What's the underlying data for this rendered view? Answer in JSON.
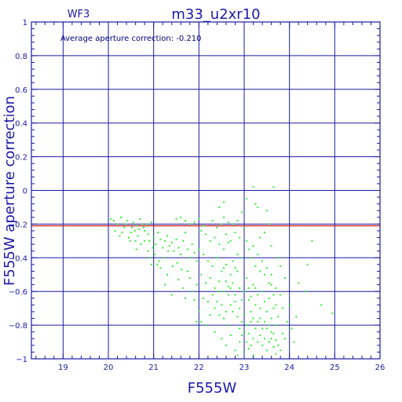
{
  "chart_data": {
    "type": "scatter",
    "title": "m33_u2xr10",
    "chip_label": "WF3",
    "annotation": "Average aperture correction: -0.210",
    "xlabel": "F555W",
    "ylabel": "F555W aperture correction",
    "xlim": [
      18.3,
      26
    ],
    "ylim": [
      -1,
      1
    ],
    "x_ticks": [
      "19",
      "20",
      "21",
      "22",
      "23",
      "24",
      "25",
      "26"
    ],
    "y_ticks": [
      "1",
      "0.8",
      "0.6",
      "0.4",
      "0.2",
      "0",
      "−0.2",
      "−0.4",
      "−0.6",
      "−0.8",
      "−1"
    ],
    "grid": true,
    "average_line": -0.21,
    "colors": {
      "axes": "#1a1aa6",
      "grid": "#1a1aa6",
      "points": "#33ee33",
      "average_line": "#cc2222"
    },
    "points": [
      [
        20.05,
        -0.17
      ],
      [
        20.12,
        -0.18
      ],
      [
        20.2,
        -0.2
      ],
      [
        20.28,
        -0.16
      ],
      [
        20.35,
        -0.22
      ],
      [
        20.42,
        -0.18
      ],
      [
        20.5,
        -0.25
      ],
      [
        20.55,
        -0.19
      ],
      [
        20.62,
        -0.21
      ],
      [
        20.68,
        -0.23
      ],
      [
        20.75,
        -0.2
      ],
      [
        20.8,
        -0.24
      ],
      [
        20.88,
        -0.26
      ],
      [
        20.95,
        -0.19
      ],
      [
        20.15,
        -0.24
      ],
      [
        20.25,
        -0.27
      ],
      [
        20.45,
        -0.28
      ],
      [
        20.6,
        -0.3
      ],
      [
        20.7,
        -0.17
      ],
      [
        20.78,
        -0.22
      ],
      [
        20.85,
        -0.2
      ],
      [
        20.9,
        -0.3
      ],
      [
        21.0,
        -0.28
      ],
      [
        21.05,
        -0.32
      ],
      [
        21.1,
        -0.25
      ],
      [
        21.15,
        -0.29
      ],
      [
        21.2,
        -0.34
      ],
      [
        21.25,
        -0.3
      ],
      [
        21.3,
        -0.27
      ],
      [
        21.35,
        -0.33
      ],
      [
        21.4,
        -0.31
      ],
      [
        21.45,
        -0.36
      ],
      [
        21.5,
        -0.29
      ],
      [
        21.55,
        -0.34
      ],
      [
        21.6,
        -0.38
      ],
      [
        21.65,
        -0.3
      ],
      [
        21.7,
        -0.25
      ],
      [
        21.75,
        -0.35
      ],
      [
        21.8,
        -0.4
      ],
      [
        21.85,
        -0.32
      ],
      [
        21.9,
        -0.37
      ],
      [
        21.95,
        -0.42
      ],
      [
        21.02,
        -0.38
      ],
      [
        21.12,
        -0.42
      ],
      [
        21.22,
        -0.4
      ],
      [
        21.32,
        -0.36
      ],
      [
        21.42,
        -0.45
      ],
      [
        21.52,
        -0.43
      ],
      [
        21.62,
        -0.47
      ],
      [
        21.5,
        -0.17
      ],
      [
        21.6,
        -0.16
      ],
      [
        21.7,
        -0.18
      ],
      [
        21.8,
        -0.2
      ],
      [
        21.9,
        -0.19
      ],
      [
        22.0,
        -0.17
      ],
      [
        22.1,
        -0.21
      ],
      [
        22.05,
        -0.24
      ],
      [
        22.15,
        -0.26
      ],
      [
        22.25,
        -0.3
      ],
      [
        22.35,
        -0.28
      ],
      [
        22.45,
        -0.32
      ],
      [
        22.55,
        -0.35
      ],
      [
        22.65,
        -0.31
      ],
      [
        22.0,
        -0.35
      ],
      [
        22.1,
        -0.38
      ],
      [
        22.2,
        -0.42
      ],
      [
        22.3,
        -0.45
      ],
      [
        22.4,
        -0.4
      ],
      [
        22.5,
        -0.48
      ],
      [
        22.6,
        -0.44
      ],
      [
        22.05,
        -0.5
      ],
      [
        22.15,
        -0.55
      ],
      [
        22.25,
        -0.52
      ],
      [
        22.35,
        -0.58
      ],
      [
        22.45,
        -0.54
      ],
      [
        22.55,
        -0.6
      ],
      [
        22.65,
        -0.57
      ],
      [
        22.7,
        -0.5
      ],
      [
        22.75,
        -0.55
      ],
      [
        22.8,
        -0.62
      ],
      [
        22.85,
        -0.48
      ],
      [
        22.9,
        -0.58
      ],
      [
        22.95,
        -0.65
      ],
      [
        23.0,
        -0.6
      ],
      [
        22.7,
        -0.68
      ],
      [
        22.75,
        -0.72
      ],
      [
        22.8,
        -0.66
      ],
      [
        22.85,
        -0.75
      ],
      [
        22.9,
        -0.7
      ],
      [
        22.95,
        -0.78
      ],
      [
        23.0,
        -0.74
      ],
      [
        23.05,
        -0.52
      ],
      [
        23.1,
        -0.58
      ],
      [
        23.15,
        -0.63
      ],
      [
        23.2,
        -0.56
      ],
      [
        23.25,
        -0.68
      ],
      [
        23.3,
        -0.62
      ],
      [
        23.35,
        -0.7
      ],
      [
        23.05,
        -0.8
      ],
      [
        23.1,
        -0.85
      ],
      [
        23.15,
        -0.78
      ],
      [
        23.2,
        -0.88
      ],
      [
        23.25,
        -0.82
      ],
      [
        23.3,
        -0.9
      ],
      [
        23.35,
        -0.86
      ],
      [
        23.4,
        -0.6
      ],
      [
        23.45,
        -0.66
      ],
      [
        23.5,
        -0.72
      ],
      [
        23.55,
        -0.64
      ],
      [
        23.6,
        -0.76
      ],
      [
        23.65,
        -0.7
      ],
      [
        23.7,
        -0.8
      ],
      [
        23.4,
        -0.92
      ],
      [
        23.45,
        -0.88
      ],
      [
        23.5,
        -0.95
      ],
      [
        23.55,
        -0.9
      ],
      [
        23.6,
        -0.84
      ],
      [
        23.65,
        -0.93
      ],
      [
        23.7,
        -0.97
      ],
      [
        22.6,
        -0.72
      ],
      [
        22.65,
        -0.8
      ],
      [
        22.55,
        -0.76
      ],
      [
        22.5,
        -0.68
      ],
      [
        22.45,
        -0.74
      ],
      [
        22.4,
        -0.66
      ],
      [
        22.35,
        -0.7
      ],
      [
        22.3,
        -0.62
      ],
      [
        22.2,
        -0.66
      ],
      [
        22.1,
        -0.64
      ],
      [
        22.25,
        -0.74
      ],
      [
        22.15,
        -0.8
      ],
      [
        22.05,
        -0.78
      ],
      [
        22.35,
        -0.84
      ],
      [
        22.5,
        -0.88
      ],
      [
        22.6,
        -0.92
      ],
      [
        22.7,
        -0.86
      ],
      [
        22.8,
        -0.95
      ],
      [
        22.9,
        -0.9
      ],
      [
        23.0,
        -0.96
      ],
      [
        22.85,
        -0.98
      ],
      [
        23.05,
        -0.3
      ],
      [
        23.1,
        -0.35
      ],
      [
        23.15,
        -0.4
      ],
      [
        23.2,
        -0.33
      ],
      [
        23.25,
        -0.45
      ],
      [
        23.3,
        -0.38
      ],
      [
        23.35,
        -0.48
      ],
      [
        23.4,
        -0.42
      ],
      [
        23.45,
        -0.5
      ],
      [
        23.5,
        -0.46
      ],
      [
        23.55,
        -0.55
      ],
      [
        23.6,
        -0.5
      ],
      [
        23.7,
        -0.58
      ],
      [
        23.8,
        -0.62
      ],
      [
        22.8,
        -0.25
      ],
      [
        22.9,
        -0.28
      ],
      [
        23.0,
        -0.22
      ],
      [
        22.7,
        -0.3
      ],
      [
        22.6,
        -0.26
      ],
      [
        22.95,
        -0.4
      ],
      [
        22.85,
        -0.38
      ],
      [
        22.5,
        -0.2
      ],
      [
        22.4,
        -0.22
      ],
      [
        22.3,
        -0.18
      ],
      [
        22.55,
        -0.16
      ],
      [
        22.65,
        -0.19
      ],
      [
        22.75,
        -0.2
      ],
      [
        22.85,
        -0.18
      ],
      [
        22.45,
        -0.1
      ],
      [
        22.55,
        -0.07
      ],
      [
        22.95,
        -0.13
      ],
      [
        23.05,
        -0.05
      ],
      [
        23.2,
        0.02
      ],
      [
        23.25,
        -0.08
      ],
      [
        23.3,
        -0.1
      ],
      [
        23.5,
        -0.12
      ],
      [
        23.65,
        0.02
      ],
      [
        23.55,
        -0.2
      ],
      [
        23.45,
        -0.25
      ],
      [
        23.35,
        -0.28
      ],
      [
        23.6,
        -0.33
      ],
      [
        23.75,
        -0.4
      ],
      [
        23.8,
        -0.45
      ],
      [
        23.9,
        -0.52
      ],
      [
        23.85,
        -0.7
      ],
      [
        23.95,
        -0.78
      ],
      [
        24.0,
        -0.68
      ],
      [
        24.05,
        -0.82
      ],
      [
        24.15,
        -0.75
      ],
      [
        24.2,
        -0.55
      ],
      [
        24.35,
        -0.6
      ],
      [
        24.4,
        -0.44
      ],
      [
        24.5,
        -0.3
      ],
      [
        24.7,
        -0.68
      ],
      [
        24.95,
        -0.73
      ],
      [
        24.1,
        -0.9
      ],
      [
        21.8,
        -0.52
      ],
      [
        21.85,
        -0.6
      ],
      [
        21.75,
        -0.48
      ],
      [
        21.95,
        -0.56
      ],
      [
        21.9,
        -0.65
      ],
      [
        22.0,
        -0.72
      ],
      [
        21.95,
        -0.78
      ],
      [
        21.3,
        -0.5
      ],
      [
        21.25,
        -0.56
      ],
      [
        21.15,
        -0.46
      ],
      [
        21.4,
        -0.62
      ],
      [
        21.55,
        -0.53
      ],
      [
        21.65,
        -0.58
      ],
      [
        21.7,
        -0.64
      ],
      [
        20.98,
        -0.34
      ],
      [
        20.92,
        -0.4
      ],
      [
        21.08,
        -0.44
      ],
      [
        20.88,
        -0.36
      ],
      [
        20.72,
        -0.32
      ],
      [
        20.65,
        -0.27
      ],
      [
        20.52,
        -0.22
      ],
      [
        20.3,
        -0.25
      ],
      [
        20.38,
        -0.2
      ],
      [
        20.48,
        -0.3
      ],
      [
        20.58,
        -0.24
      ],
      [
        20.62,
        -0.35
      ],
      [
        20.8,
        -0.3
      ],
      [
        20.95,
        -0.44
      ],
      [
        23.1,
        -0.65
      ],
      [
        23.15,
        -0.72
      ],
      [
        23.2,
        -0.76
      ],
      [
        23.25,
        -0.58
      ],
      [
        23.3,
        -0.78
      ],
      [
        23.35,
        -0.76
      ],
      [
        23.4,
        -0.82
      ],
      [
        22.9,
        -0.82
      ],
      [
        22.95,
        -0.86
      ],
      [
        23.0,
        -0.84
      ],
      [
        23.05,
        -0.9
      ],
      [
        23.1,
        -0.94
      ],
      [
        23.15,
        -0.92
      ],
      [
        23.2,
        -0.98
      ],
      [
        23.45,
        -0.78
      ],
      [
        23.5,
        -0.82
      ],
      [
        23.55,
        -0.8
      ],
      [
        23.6,
        -0.88
      ],
      [
        23.65,
        -0.85
      ],
      [
        23.7,
        -0.89
      ],
      [
        23.75,
        -0.92
      ],
      [
        23.85,
        -0.85
      ],
      [
        23.9,
        -0.88
      ],
      [
        23.8,
        -0.95
      ],
      [
        23.75,
        -0.75
      ],
      [
        23.7,
        -0.68
      ],
      [
        23.65,
        -0.62
      ],
      [
        23.6,
        -0.56
      ],
      [
        22.75,
        -0.42
      ],
      [
        22.8,
        -0.46
      ],
      [
        22.7,
        -0.58
      ],
      [
        22.65,
        -0.62
      ],
      [
        22.6,
        -0.54
      ],
      [
        22.55,
        -0.46
      ],
      [
        22.45,
        -0.6
      ]
    ]
  }
}
